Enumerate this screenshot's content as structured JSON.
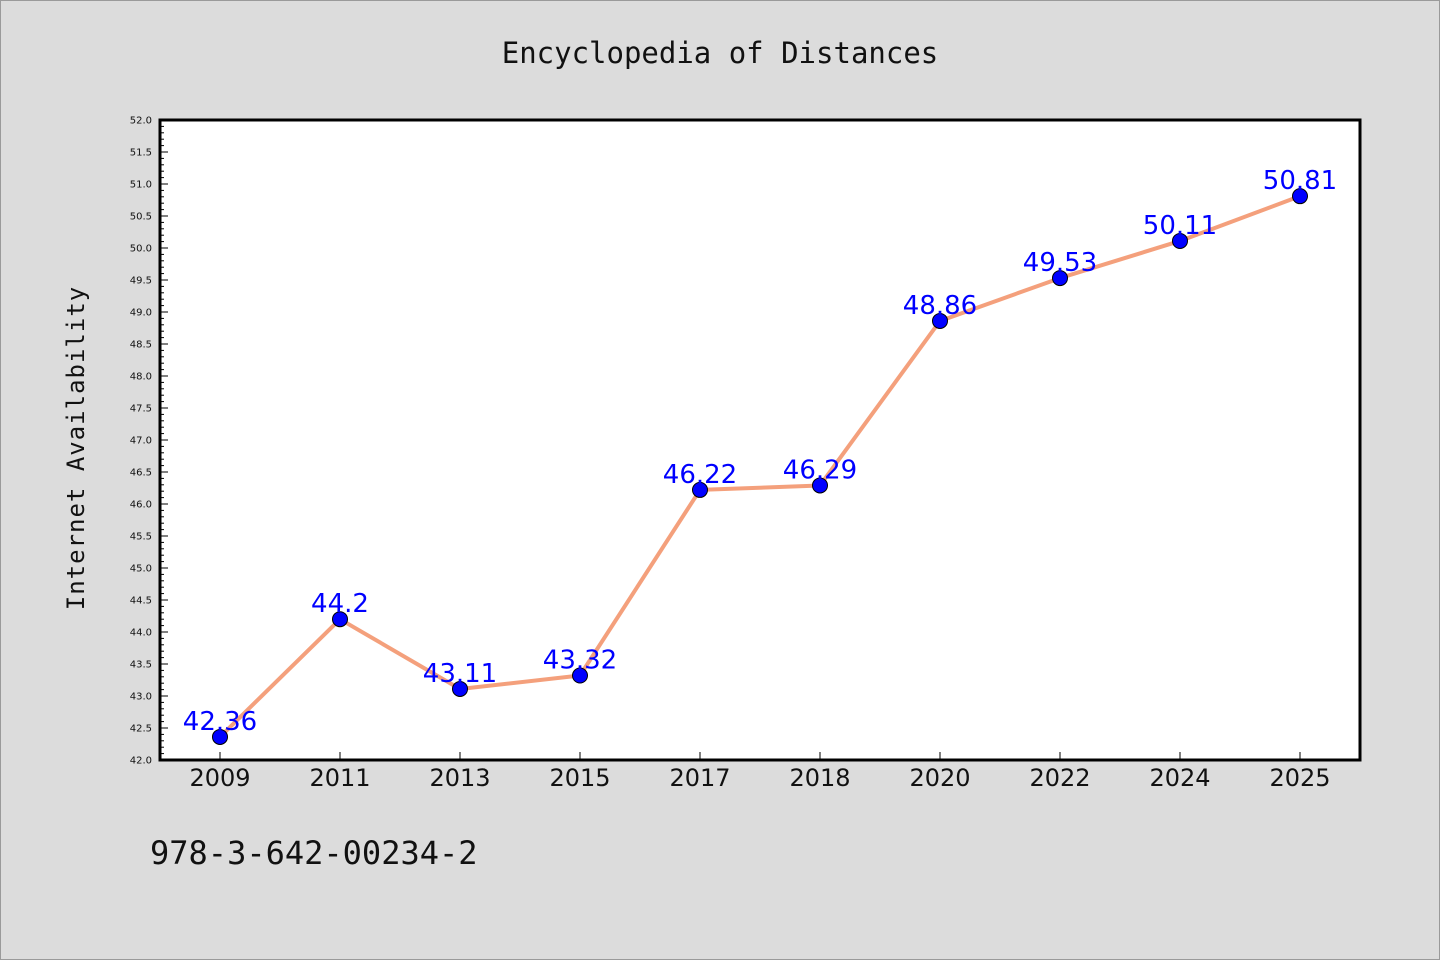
{
  "chart_data": {
    "type": "line",
    "title": "Encyclopedia of Distances",
    "xlabel": "",
    "ylabel": "Internet Availability",
    "categories": [
      "2009",
      "2011",
      "2013",
      "2015",
      "2017",
      "2018",
      "2020",
      "2022",
      "2024",
      "2025"
    ],
    "series": [
      {
        "values": [
          42.36,
          44.2,
          43.11,
          43.32,
          46.22,
          46.29,
          48.86,
          49.53,
          50.11,
          50.81
        ],
        "data_labels": [
          "42.36",
          "44.2",
          "43.11",
          "43.32",
          "46.22",
          "46.29",
          "48.86",
          "49.53",
          "50.11",
          "50.81"
        ],
        "line_color": "#f4a07c",
        "marker_color": "#0000ff"
      }
    ],
    "ylim": [
      42.0,
      52.0
    ],
    "y_ticks": [
      "42.0",
      "42.5",
      "43.0",
      "43.5",
      "44.0",
      "44.5",
      "45.0",
      "45.5",
      "46.0",
      "46.5",
      "47.0",
      "47.5",
      "48.0",
      "48.5",
      "49.0",
      "49.5",
      "50.0",
      "50.5",
      "51.0",
      "51.5",
      "52.0"
    ],
    "grid": false,
    "legend": "none"
  },
  "footnote": "978-3-642-00234-2",
  "colors": {
    "background": "#dcdcdc",
    "plot_area": "#ffffff",
    "line": "#f4a07c",
    "marker": "#0000ff",
    "data_label": "#0000ff"
  }
}
